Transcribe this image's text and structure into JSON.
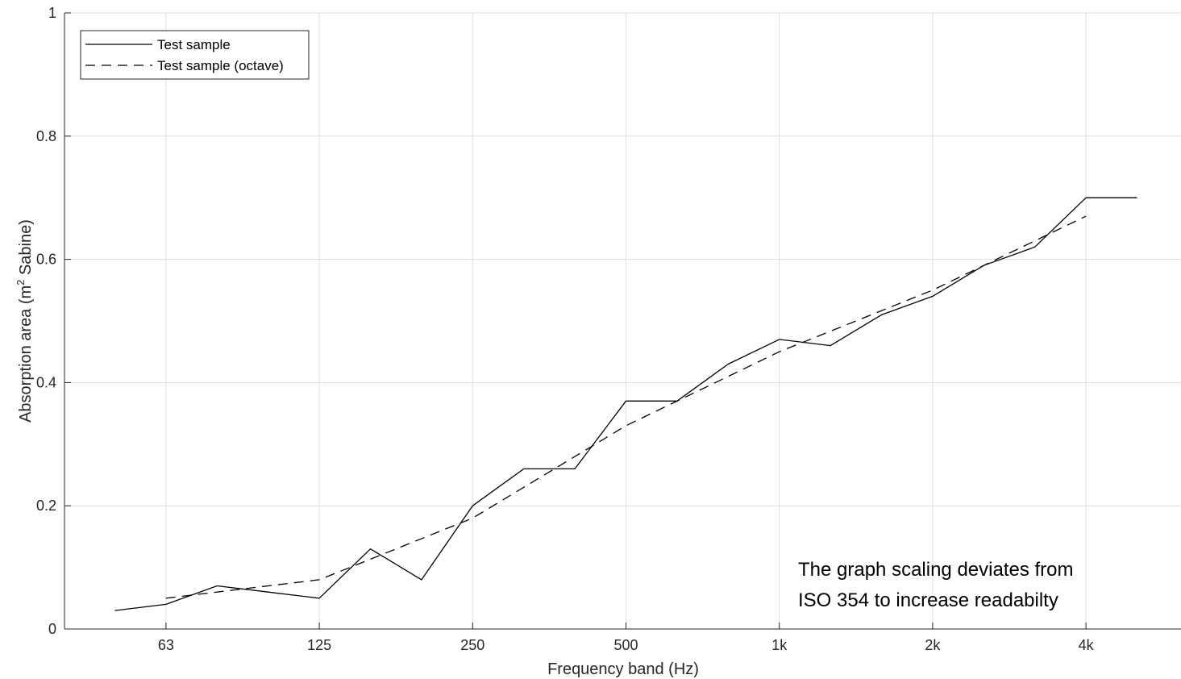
{
  "chart_data": {
    "type": "line",
    "xlabel": "Frequency band (Hz)",
    "ylabel_prefix": "Absorption area (m",
    "ylabel_sup": "2",
    "ylabel_suffix": " Sabine)",
    "x_scale": "log (1/3-octave bands)",
    "categories": [
      "50",
      "63",
      "80",
      "100",
      "125",
      "160",
      "200",
      "250",
      "315",
      "400",
      "500",
      "630",
      "800",
      "1k",
      "1.25k",
      "1.6k",
      "2k",
      "2.5k",
      "3.15k",
      "4k",
      "5k"
    ],
    "x_tick_labels": [
      "63",
      "125",
      "250",
      "500",
      "1k",
      "2k",
      "4k"
    ],
    "ylim": [
      0,
      1
    ],
    "y_ticks": [
      0,
      0.2,
      0.4,
      0.6,
      0.8,
      1
    ],
    "y_tick_labels": [
      "0",
      "0.2",
      "0.4",
      "0.6",
      "0.8",
      "1"
    ],
    "grid": true,
    "legend_position": "top-left",
    "series": [
      {
        "name": "Test sample",
        "style": "solid",
        "color": "#000000",
        "values": [
          0.03,
          0.04,
          0.07,
          0.06,
          0.05,
          0.13,
          0.08,
          0.2,
          0.26,
          0.26,
          0.37,
          0.37,
          0.43,
          0.47,
          0.46,
          0.51,
          0.54,
          0.59,
          0.62,
          0.7,
          0.7
        ]
      },
      {
        "name": "Test sample (octave)",
        "style": "dashed",
        "color": "#000000",
        "values": [
          null,
          0.05,
          null,
          null,
          0.08,
          null,
          null,
          0.18,
          null,
          null,
          0.33,
          null,
          null,
          0.45,
          null,
          null,
          0.55,
          null,
          null,
          0.67,
          null
        ]
      }
    ],
    "annotation_lines": [
      "The graph scaling deviates from",
      "ISO 354 to increase readabilty"
    ]
  }
}
